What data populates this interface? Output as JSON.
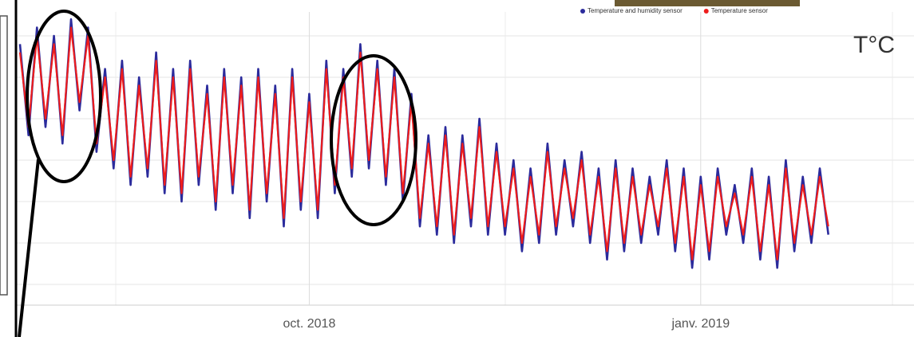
{
  "chart_data": {
    "type": "line",
    "categories": [
      null,
      null,
      null,
      null,
      null,
      null,
      null,
      null,
      null,
      null,
      null,
      null,
      null,
      null,
      null,
      null,
      null,
      null,
      null,
      null,
      null,
      null,
      null,
      null,
      null,
      null,
      null,
      null,
      null,
      null,
      null,
      null,
      null,
      null,
      "oct. 2018",
      null,
      null,
      null,
      null,
      null,
      null,
      null,
      null,
      null,
      null,
      null,
      null,
      null,
      null,
      null,
      null,
      null,
      null,
      null,
      null,
      null,
      null,
      null,
      null,
      null,
      null,
      null,
      null,
      null,
      null,
      null,
      null,
      null,
      null,
      null,
      null,
      null,
      null,
      null,
      null,
      null,
      null,
      null,
      null,
      null,
      "janv. 2019",
      null,
      null,
      null,
      null,
      null,
      null,
      null,
      null,
      null,
      null,
      null,
      null,
      null,
      null,
      null
    ],
    "series": [
      {
        "name": "Temperature and humidity sensor",
        "color": "#2b2b9c",
        "values": [
          34,
          23,
          36,
          24,
          35,
          22,
          37,
          26,
          36,
          21,
          31,
          19,
          32,
          17,
          30,
          18,
          33,
          16,
          31,
          15,
          32,
          17,
          29,
          14,
          31,
          16,
          30,
          13,
          31,
          15,
          29,
          12,
          31,
          14,
          28,
          13,
          32,
          16,
          31,
          18,
          34,
          19,
          32,
          17,
          31,
          15,
          28,
          12,
          23,
          11,
          24,
          10,
          23,
          12,
          25,
          11,
          22,
          11,
          20,
          9,
          19,
          10,
          22,
          11,
          20,
          12,
          21,
          10,
          19,
          8,
          20,
          9,
          19,
          10,
          18,
          11,
          20,
          9,
          19,
          7,
          18,
          8,
          19,
          11,
          17,
          10,
          19,
          8,
          18,
          7,
          20,
          9,
          18,
          10,
          19,
          11
        ]
      },
      {
        "name": "Temperature sensor",
        "color": "#ee1c1c",
        "values": [
          33,
          24,
          35,
          25,
          34,
          23,
          36,
          27,
          35,
          22,
          30,
          20,
          31,
          18,
          29,
          19,
          32,
          17,
          30,
          16,
          31,
          18,
          28,
          15,
          30,
          17,
          29,
          14,
          30,
          16,
          28,
          13,
          30,
          15,
          27,
          14,
          31,
          17,
          30,
          19,
          33,
          20,
          31,
          18,
          30,
          16,
          27,
          13,
          22,
          12,
          23,
          11,
          22,
          13,
          24,
          12,
          21,
          12,
          19,
          10,
          18,
          11,
          21,
          12,
          19,
          13,
          20,
          11,
          18,
          9,
          19,
          10,
          18,
          11,
          17,
          12,
          19,
          10,
          18,
          8,
          17,
          9,
          18,
          12,
          16,
          11,
          18,
          9,
          17,
          8,
          19,
          10,
          17,
          11,
          18,
          12
        ]
      }
    ],
    "ylim": [
      2.5,
      37.5
    ],
    "yticks": [
      5,
      10,
      15,
      20,
      25,
      30,
      35
    ],
    "grid": true,
    "unit_label": "T°C"
  }
}
